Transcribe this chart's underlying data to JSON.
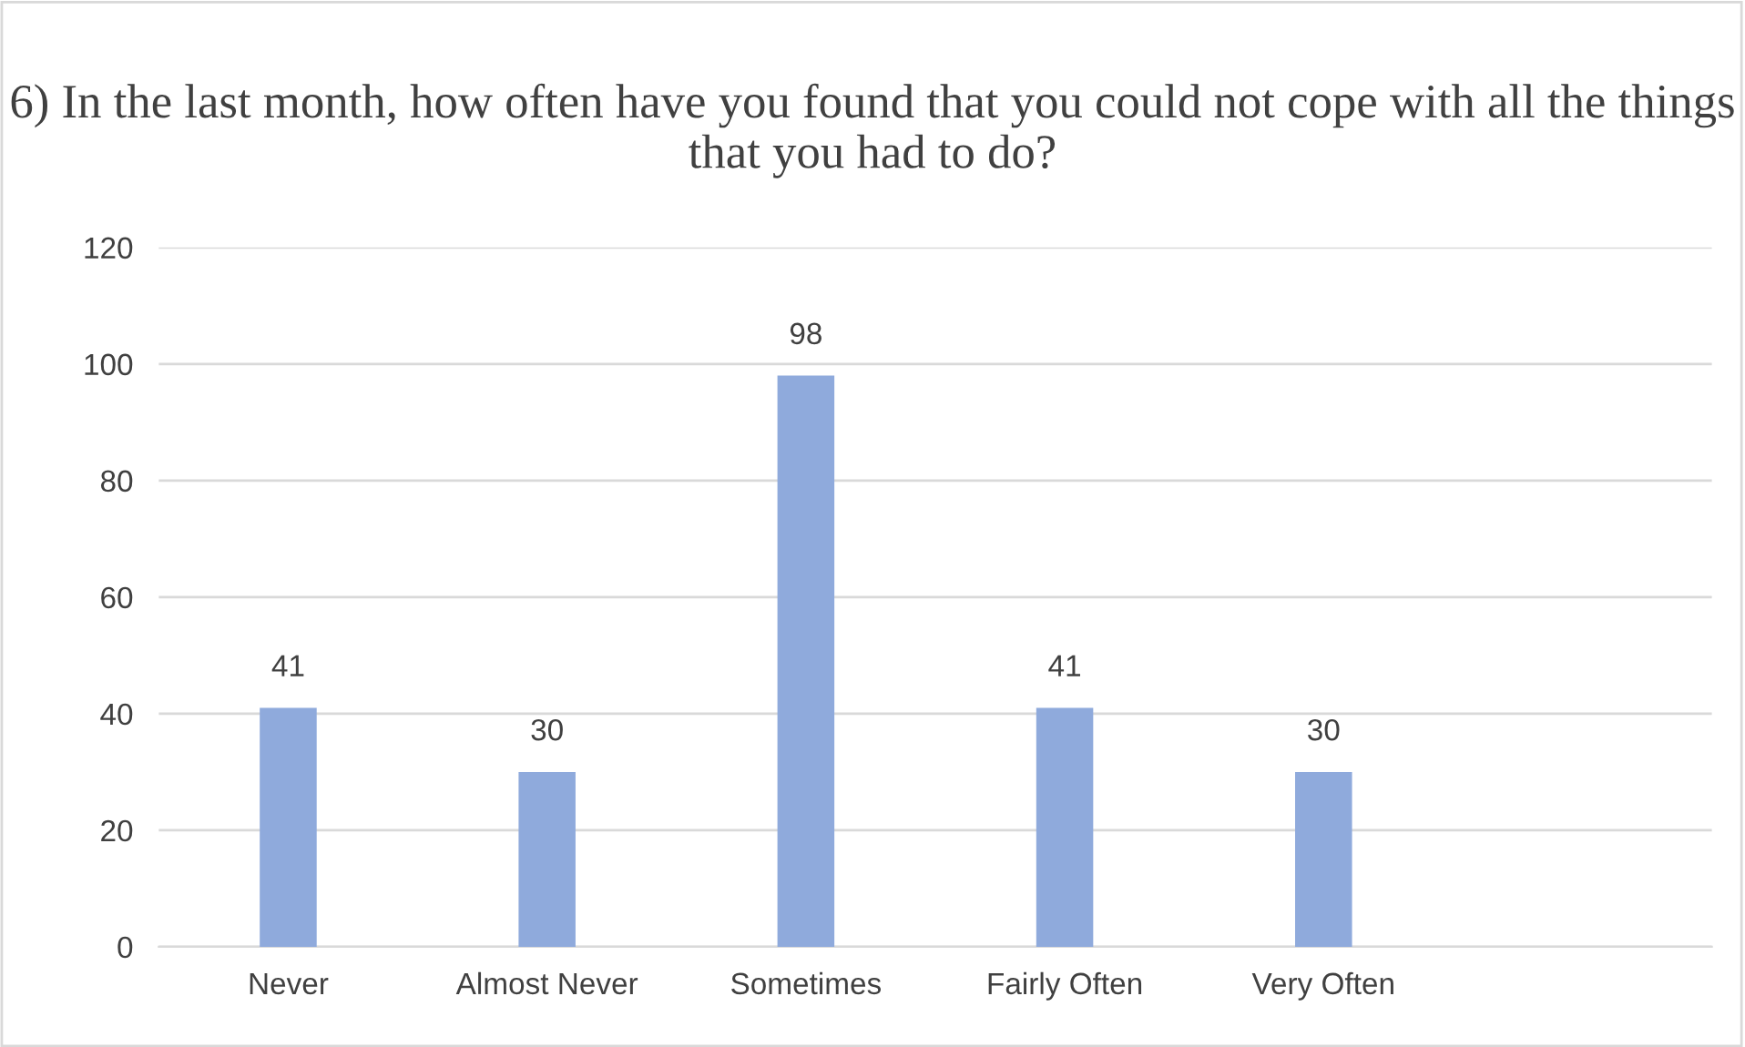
{
  "chart_data": {
    "type": "bar",
    "title": "6) In the last month, how often have you found that you could not cope with all the things that you had to do?",
    "categories": [
      "Never",
      "Almost Never",
      "Sometimes",
      "Fairly Often",
      "Very Often",
      null
    ],
    "values": [
      41,
      30,
      98,
      41,
      30,
      null
    ],
    "color": "#8faadc",
    "ylim": [
      0,
      120
    ],
    "yticks": [
      0,
      20,
      40,
      60,
      80,
      100,
      120
    ],
    "grid": "y",
    "data_labels": true,
    "legend": false
  }
}
